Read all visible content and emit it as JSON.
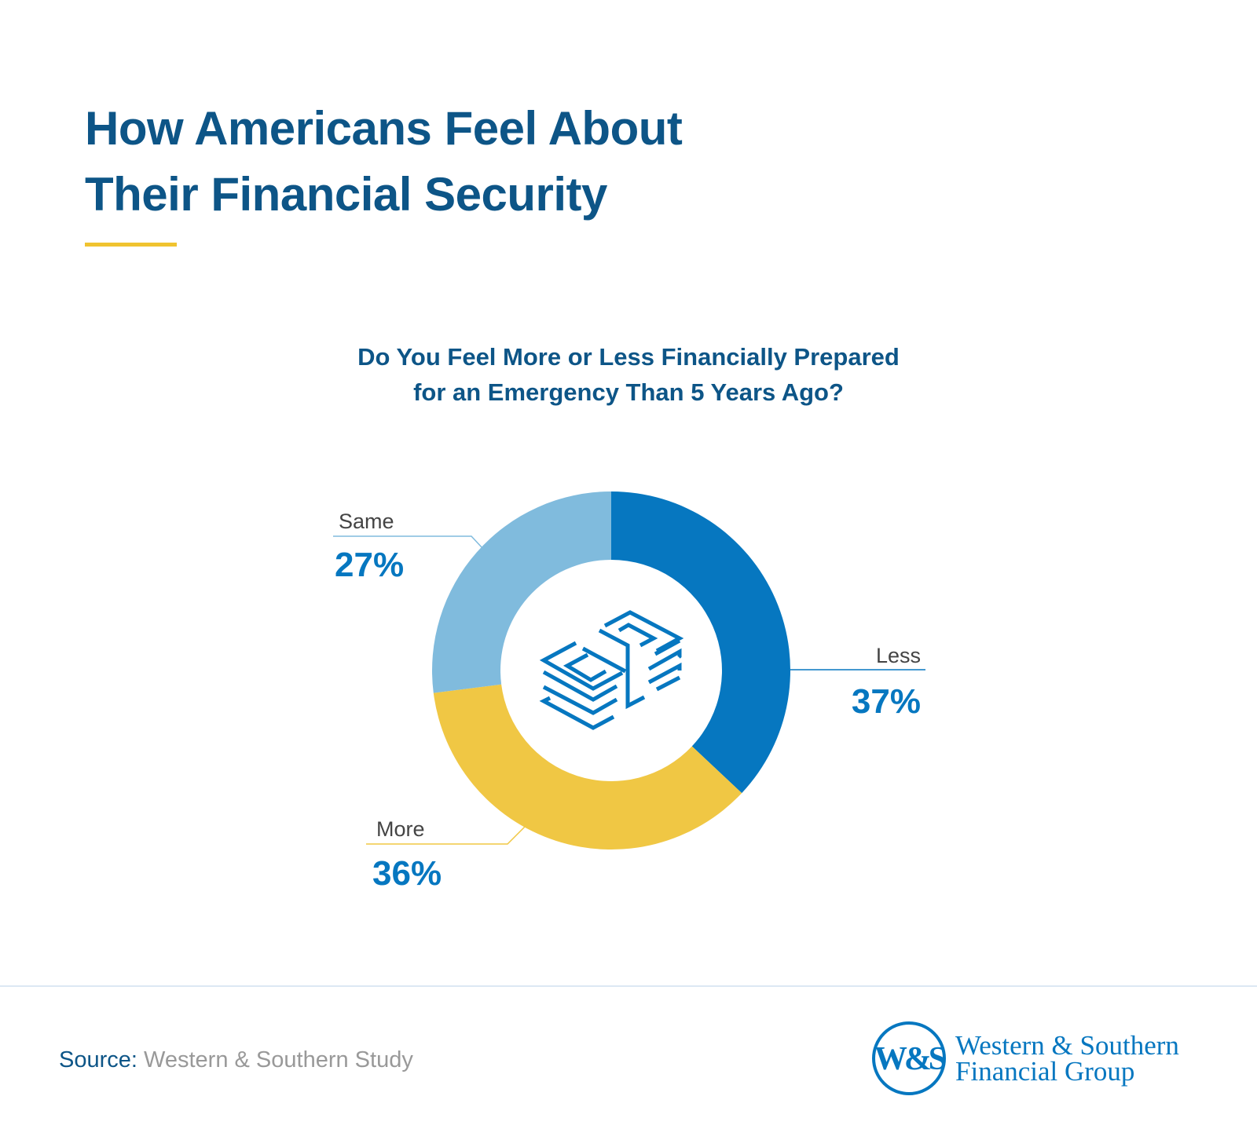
{
  "title_lines": [
    "How Americans Feel About",
    "Their Financial Security"
  ],
  "colors": {
    "title": "#0D5587",
    "accent": "#F0C330",
    "label": "#444444",
    "value": "#0677C0"
  },
  "chart_data": {
    "type": "pie",
    "subtitle_lines": [
      "Do You Feel More or Less Financially Prepared",
      "for an Emergency Than 5 Years Ago?"
    ],
    "categories": [
      "Less",
      "More",
      "Same"
    ],
    "values": [
      37,
      36,
      27
    ],
    "value_labels": [
      "37%",
      "36%",
      "27%"
    ],
    "colors": [
      "#0677C0",
      "#F0C744",
      "#80BBDD"
    ],
    "donut": true,
    "center_icon": "money-stack-icon"
  },
  "footer": {
    "source_label": "Source:",
    "source_text": "Western & Southern Study",
    "logo_monogram": "W&S",
    "logo_lines": [
      "Western & Southern",
      "Financial Group"
    ]
  }
}
